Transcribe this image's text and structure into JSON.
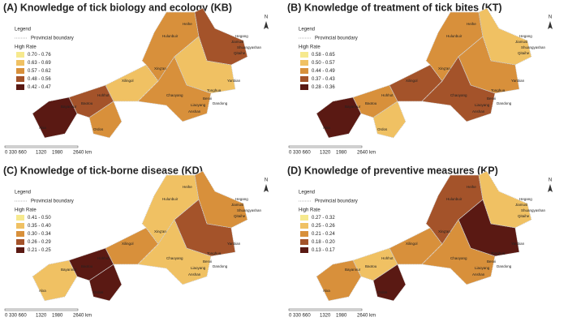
{
  "panels": [
    {
      "title": "(A) Knowledge of tick biology and ecology (KB)",
      "legend_title": "Legend",
      "boundary_label": "Provincial boundary",
      "rate_label": "High Rate",
      "classes": [
        "0.70 - 0.76",
        "0.63 - 0.69",
        "0.57 - 0.62",
        "0.48 - 0.56",
        "0.42 - 0.47"
      ],
      "north": "N",
      "scale": [
        "0 330 660",
        "1320",
        "1980",
        "2640 km"
      ]
    },
    {
      "title": "(B) Knowledge of treatment of tick bites (KT)",
      "legend_title": "Legend",
      "boundary_label": "Provincial boundary",
      "rate_label": "High Rate",
      "classes": [
        "0.58 - 0.65",
        "0.50 - 0.57",
        "0.44 - 0.49",
        "0.37 - 0.43",
        "0.28 - 0.36"
      ],
      "north": "N",
      "scale": [
        "0 330 660",
        "1320",
        "1980",
        "2640 km"
      ]
    },
    {
      "title": "(C) Knowledge of tick-borne disease (KD)",
      "legend_title": "Legend",
      "boundary_label": "Provincial boundary",
      "rate_label": "High Rate",
      "classes": [
        "0.41 - 0.50",
        "0.35 - 0.40",
        "0.30 - 0.34",
        "0.26 - 0.29",
        "0.21 - 0.25"
      ],
      "north": "N",
      "scale": [
        "0 330 660",
        "1320",
        "1980",
        "2640 km"
      ]
    },
    {
      "title": "(D) Knowledge of preventive measures (KP)",
      "legend_title": "Legend",
      "boundary_label": "Provincial boundary",
      "rate_label": "High Rate",
      "classes": [
        "0.27 - 0.32",
        "0.25 - 0.26",
        "0.21 - 0.24",
        "0.18 - 0.20",
        "0.13 - 0.17"
      ],
      "north": "N",
      "scale": [
        "0 330 660",
        "1320",
        "1980",
        "2640 km"
      ]
    }
  ],
  "places": [
    "Alxa",
    "Bayannur",
    "Baotou",
    "Ordos",
    "Hohhot",
    "Xilingol",
    "Hulunbuir",
    "Xing'an",
    "Heihe",
    "Hegang",
    "Jiamusi",
    "Shuangyashan",
    "Qitaihe",
    "Yanbian",
    "Tonghua",
    "Benxi",
    "Dandong",
    "Liaoyang",
    "Anshan",
    "Chaoyang"
  ]
}
